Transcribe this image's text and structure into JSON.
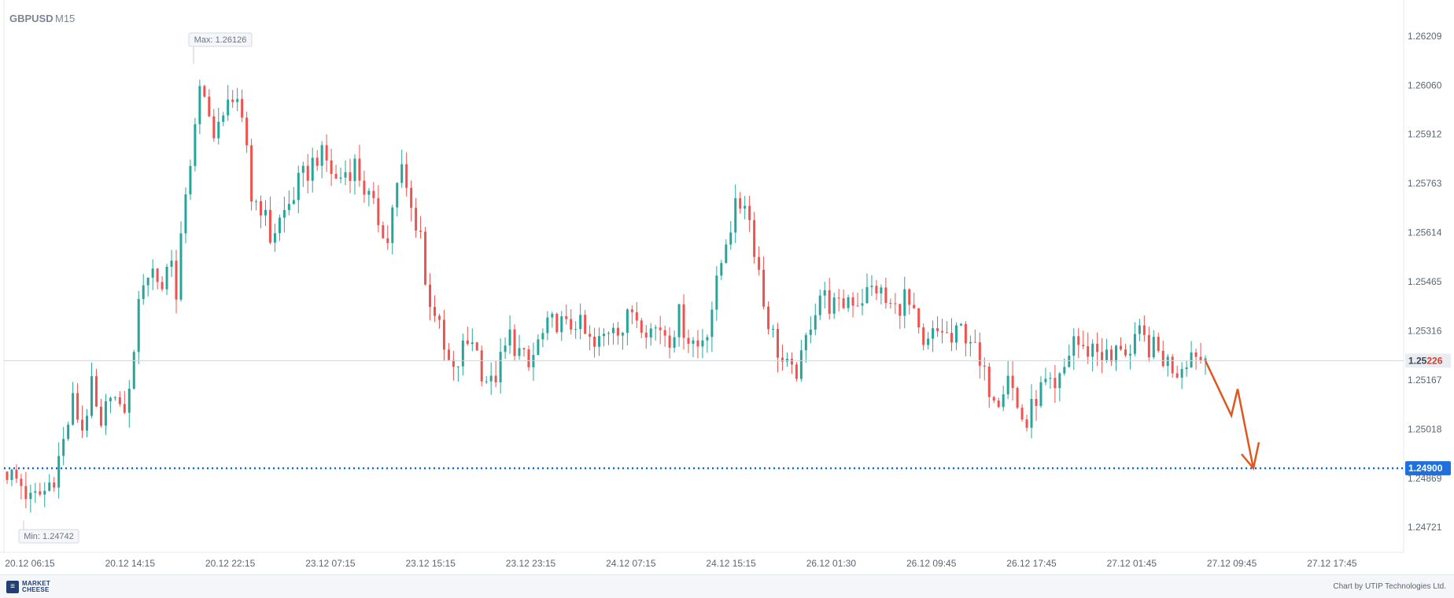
{
  "chart_data": {
    "type": "candlestick",
    "symbol": "GBPUSD",
    "timeframe": "M15",
    "y_ticks": [
      "1.26209",
      "1.26060",
      "1.25912",
      "1.25763",
      "1.25614",
      "1.25465",
      "1.25316",
      "1.25167",
      "1.25018",
      "1.24869",
      "1.24721"
    ],
    "ylim": [
      1.2465,
      1.26295
    ],
    "x_ticks": [
      "20.12 06:15",
      "20.12 14:15",
      "20.12 22:15",
      "23.12 07:15",
      "23.12 15:15",
      "23.12 23:15",
      "24.12 07:15",
      "24.12 15:15",
      "26.12 01:30",
      "26.12 09:45",
      "26.12 17:45",
      "27.12 01:45",
      "27.12 09:45",
      "27.12 17:45"
    ],
    "max_label": "Max: 1.26126",
    "max_value": 1.26126,
    "min_label": "Min: 1.24742",
    "min_value": 1.24742,
    "current_price": 1.25226,
    "current_price_label_dim": "1.25",
    "current_price_label_hi": "226",
    "target_level": 1.249,
    "target_label": "1.24900",
    "price_path": [
      [
        0,
        1.2489
      ],
      [
        3,
        1.2485
      ],
      [
        5,
        1.248
      ],
      [
        8,
        1.2483
      ],
      [
        10,
        1.2488
      ],
      [
        12,
        1.2498
      ],
      [
        14,
        1.251
      ],
      [
        16,
        1.2502
      ],
      [
        18,
        1.2514
      ],
      [
        20,
        1.25
      ],
      [
        22,
        1.2515
      ],
      [
        24,
        1.2506
      ],
      [
        26,
        1.2512
      ],
      [
        27,
        1.2528
      ],
      [
        29,
        1.2548
      ],
      [
        31,
        1.255
      ],
      [
        33,
        1.2545
      ],
      [
        35,
        1.2556
      ],
      [
        36,
        1.254
      ],
      [
        38,
        1.2575
      ],
      [
        40,
        1.2592
      ],
      [
        41,
        1.2603
      ],
      [
        43,
        1.26
      ],
      [
        44,
        1.259
      ],
      [
        46,
        1.2595
      ],
      [
        47,
        1.2605
      ],
      [
        49,
        1.2598
      ],
      [
        51,
        1.2588
      ],
      [
        52,
        1.2572
      ],
      [
        54,
        1.257
      ],
      [
        56,
        1.256
      ],
      [
        58,
        1.2565
      ],
      [
        60,
        1.257
      ],
      [
        62,
        1.2576
      ],
      [
        64,
        1.258
      ],
      [
        66,
        1.2585
      ],
      [
        68,
        1.2583
      ],
      [
        70,
        1.2577
      ],
      [
        72,
        1.258
      ],
      [
        74,
        1.2582
      ],
      [
        76,
        1.2575
      ],
      [
        78,
        1.2568
      ],
      [
        80,
        1.2563
      ],
      [
        81,
        1.2558
      ],
      [
        82,
        1.257
      ],
      [
        84,
        1.258
      ],
      [
        86,
        1.2568
      ],
      [
        88,
        1.2562
      ],
      [
        89,
        1.2545
      ],
      [
        91,
        1.2538
      ],
      [
        93,
        1.2525
      ],
      [
        95,
        1.2518
      ],
      [
        97,
        1.2526
      ],
      [
        99,
        1.253
      ],
      [
        101,
        1.252
      ],
      [
        103,
        1.2515
      ],
      [
        105,
        1.2522
      ],
      [
        107,
        1.253
      ],
      [
        109,
        1.2525
      ],
      [
        111,
        1.252
      ],
      [
        113,
        1.2528
      ],
      [
        115,
        1.2532
      ],
      [
        117,
        1.2535
      ],
      [
        119,
        1.2532
      ],
      [
        121,
        1.2535
      ],
      [
        123,
        1.253
      ],
      [
        125,
        1.2526
      ],
      [
        127,
        1.253
      ],
      [
        129,
        1.2535
      ],
      [
        131,
        1.2532
      ],
      [
        133,
        1.2538
      ],
      [
        135,
        1.2535
      ],
      [
        137,
        1.2532
      ],
      [
        139,
        1.2533
      ],
      [
        141,
        1.253
      ],
      [
        143,
        1.2536
      ],
      [
        145,
        1.253
      ],
      [
        147,
        1.2527
      ],
      [
        149,
        1.2533
      ],
      [
        151,
        1.2545
      ],
      [
        153,
        1.256
      ],
      [
        155,
        1.2568
      ],
      [
        157,
        1.2572
      ],
      [
        158,
        1.2565
      ],
      [
        160,
        1.255
      ],
      [
        161,
        1.254
      ],
      [
        163,
        1.253
      ],
      [
        165,
        1.2522
      ],
      [
        167,
        1.2518
      ],
      [
        169,
        1.2522
      ],
      [
        171,
        1.2535
      ],
      [
        173,
        1.2543
      ],
      [
        175,
        1.254
      ],
      [
        177,
        1.2538
      ],
      [
        179,
        1.2542
      ],
      [
        181,
        1.2541
      ],
      [
        183,
        1.2543
      ],
      [
        185,
        1.2545
      ],
      [
        187,
        1.254
      ],
      [
        189,
        1.2538
      ],
      [
        191,
        1.2542
      ],
      [
        193,
        1.2535
      ],
      [
        195,
        1.2525
      ],
      [
        197,
        1.253
      ],
      [
        199,
        1.2532
      ],
      [
        201,
        1.2528
      ],
      [
        203,
        1.2532
      ],
      [
        205,
        1.253
      ],
      [
        207,
        1.252
      ],
      [
        209,
        1.2515
      ],
      [
        211,
        1.2512
      ],
      [
        213,
        1.252
      ],
      [
        215,
        1.2508
      ],
      [
        217,
        1.2503
      ],
      [
        219,
        1.2512
      ],
      [
        221,
        1.2515
      ],
      [
        223,
        1.2512
      ],
      [
        225,
        1.252
      ],
      [
        227,
        1.253
      ],
      [
        229,
        1.2525
      ],
      [
        231,
        1.2527
      ],
      [
        233,
        1.2525
      ],
      [
        235,
        1.2522
      ],
      [
        237,
        1.2528
      ],
      [
        239,
        1.2524
      ],
      [
        241,
        1.253
      ],
      [
        243,
        1.2527
      ],
      [
        245,
        1.2525
      ],
      [
        247,
        1.2522
      ],
      [
        249,
        1.252
      ],
      [
        251,
        1.2524
      ],
      [
        253,
        1.2526
      ],
      [
        254,
        1.2523
      ],
      [
        255,
        1.2524
      ]
    ]
  },
  "footer": {
    "logo_glyph": "≡",
    "logo_text_line1": "MARKET",
    "logo_text_line2": "CHEESE",
    "credit": "Chart by UTIP Technologies Ltd."
  }
}
